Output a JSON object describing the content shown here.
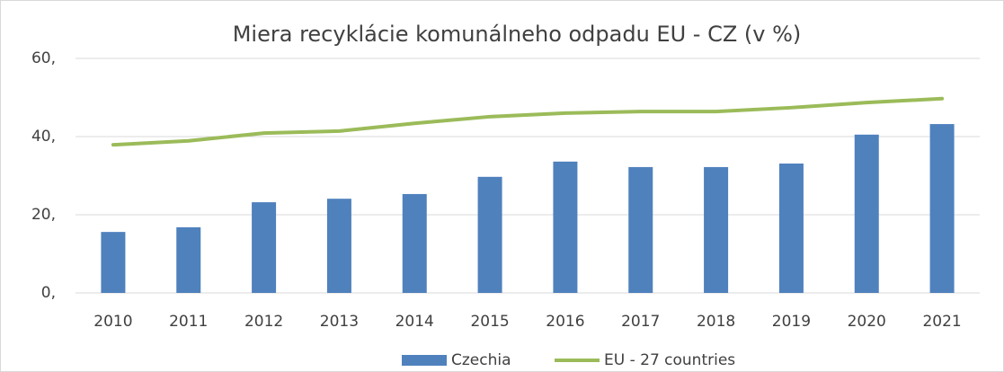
{
  "chart_data": {
    "type": "bar",
    "title": "Miera recyklácie komunálneho odpadu EU - CZ (v %)",
    "categories": [
      "2010",
      "2011",
      "2012",
      "2013",
      "2014",
      "2015",
      "2016",
      "2017",
      "2018",
      "2019",
      "2020",
      "2021"
    ],
    "series": [
      {
        "name": "Czechia",
        "type": "bar",
        "color": "#4f81bd",
        "values": [
          15.6,
          16.8,
          23.2,
          24.1,
          25.3,
          29.7,
          33.6,
          32.2,
          32.2,
          33.1,
          40.5,
          43.2
        ]
      },
      {
        "name": "EU - 27 countries",
        "type": "line",
        "color": "#9bbb59",
        "values": [
          37.9,
          38.9,
          40.9,
          41.4,
          43.4,
          45.1,
          46.0,
          46.4,
          46.4,
          47.4,
          48.7,
          49.7
        ]
      }
    ],
    "ylim": [
      0,
      60
    ],
    "yticks": [
      {
        "value": 0,
        "label": "0,"
      },
      {
        "value": 20,
        "label": "20,"
      },
      {
        "value": 40,
        "label": "40,"
      },
      {
        "value": 60,
        "label": "60,"
      }
    ],
    "grid": true,
    "legend": "bottom"
  }
}
